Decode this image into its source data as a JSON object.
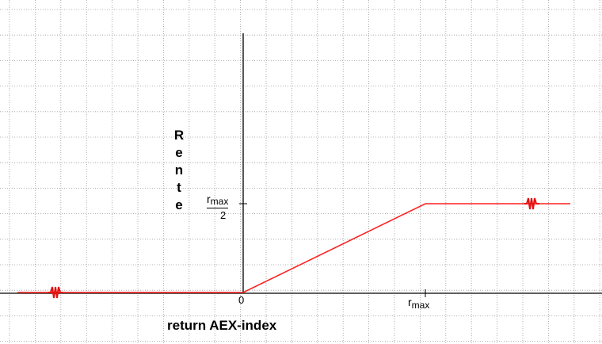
{
  "diagram": {
    "y_axis_label": "Rente",
    "x_axis_label": "return AEX-index",
    "origin_label": "0",
    "rmax_main": "r",
    "rmax_sub": "max",
    "half_num_main": "r",
    "half_num_sub": "max",
    "half_den": "2"
  },
  "colors": {
    "curve": "#ff2020",
    "grid": "#9a9a9a",
    "axis": "#000000"
  },
  "payoff_segments": [
    {
      "name": "negative-return",
      "slope": 0
    },
    {
      "name": "linear-participation",
      "from": "0",
      "to": "rmax",
      "to_value": "rmax/2"
    },
    {
      "name": "cap",
      "slope": 0
    }
  ]
}
